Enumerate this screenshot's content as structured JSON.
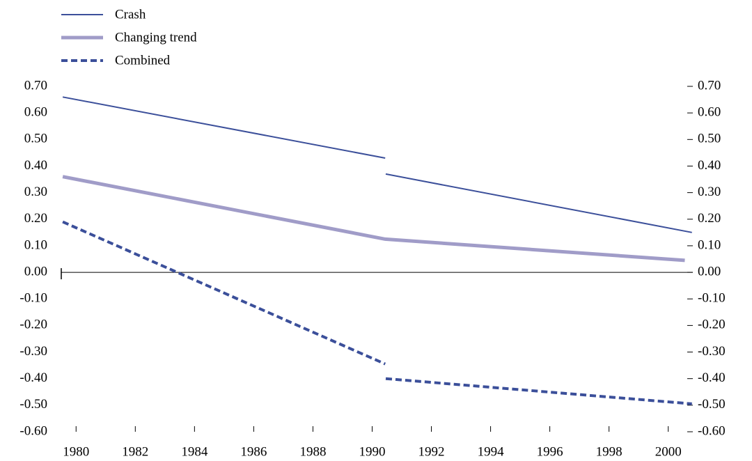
{
  "chart_data": {
    "type": "line",
    "series": [
      {
        "name": "Crash",
        "color": "#3b4f9a",
        "width": 2,
        "dash": false,
        "x": [
          1980.05,
          1990.94,
          1990.95,
          1990.96,
          2001.3
        ],
        "values": [
          0.66,
          0.43,
          null,
          0.37,
          0.15
        ]
      },
      {
        "name": "Changing trend",
        "color": "#a09cc8",
        "width": 5,
        "dash": false,
        "x": [
          1980.05,
          1990.94,
          2001.06
        ],
        "values": [
          0.36,
          0.125,
          0.045
        ]
      },
      {
        "name": "Combined",
        "color": "#3b4f9a",
        "width": 4,
        "dash": true,
        "x": [
          1980.05,
          1990.94,
          1990.95,
          1990.96,
          2001.3
        ],
        "values": [
          0.19,
          -0.345,
          null,
          -0.4,
          -0.495
        ]
      }
    ],
    "xlim": [
      1980,
      2001.33
    ],
    "xticks": [
      {
        "value": 1980.5,
        "label": "1980"
      },
      {
        "value": 1982.5,
        "label": "1982"
      },
      {
        "value": 1984.5,
        "label": "1984"
      },
      {
        "value": 1986.5,
        "label": "1986"
      },
      {
        "value": 1988.5,
        "label": "1988"
      },
      {
        "value": 1990.5,
        "label": "1990"
      },
      {
        "value": 1992.5,
        "label": "1992"
      },
      {
        "value": 1994.5,
        "label": "1994"
      },
      {
        "value": 1996.5,
        "label": "1996"
      },
      {
        "value": 1998.5,
        "label": "1998"
      },
      {
        "value": 2000.5,
        "label": "2000"
      }
    ],
    "ylim": [
      -0.6,
      0.7
    ],
    "yticks": [
      {
        "value": 0.7,
        "label": "0.70"
      },
      {
        "value": 0.6,
        "label": "0.60"
      },
      {
        "value": 0.5,
        "label": "0.50"
      },
      {
        "value": 0.4,
        "label": "0.40"
      },
      {
        "value": 0.3,
        "label": "0.30"
      },
      {
        "value": 0.2,
        "label": "0.20"
      },
      {
        "value": 0.1,
        "label": "0.10"
      },
      {
        "value": 0,
        "label": "0.00"
      },
      {
        "value": -0.1,
        "label": "-0.10"
      },
      {
        "value": -0.2,
        "label": "-0.20"
      },
      {
        "value": -0.3,
        "label": "-0.30"
      },
      {
        "value": -0.4,
        "label": "-0.40"
      },
      {
        "value": -0.5,
        "label": "-0.50"
      },
      {
        "value": -0.6,
        "label": "-0.60"
      }
    ],
    "y2lim": [
      -0.6,
      0.7
    ],
    "y2ticks": [
      {
        "value": 0.7,
        "label": "0.70"
      },
      {
        "value": 0.6,
        "label": "0.60"
      },
      {
        "value": 0.5,
        "label": "0.50"
      },
      {
        "value": 0.4,
        "label": "0.40"
      },
      {
        "value": 0.3,
        "label": "0.30"
      },
      {
        "value": 0.2,
        "label": "0.20"
      },
      {
        "value": 0.1,
        "label": "0.10"
      },
      {
        "value": 0,
        "label": "0.00"
      },
      {
        "value": -0.1,
        "label": "-0.10"
      },
      {
        "value": -0.2,
        "label": "-0.20"
      },
      {
        "value": -0.3,
        "label": "-0.30"
      },
      {
        "value": -0.4,
        "label": "-0.40"
      },
      {
        "value": -0.5,
        "label": "-0.50"
      },
      {
        "value": -0.6,
        "label": "-0.60"
      }
    ],
    "grid": false
  }
}
